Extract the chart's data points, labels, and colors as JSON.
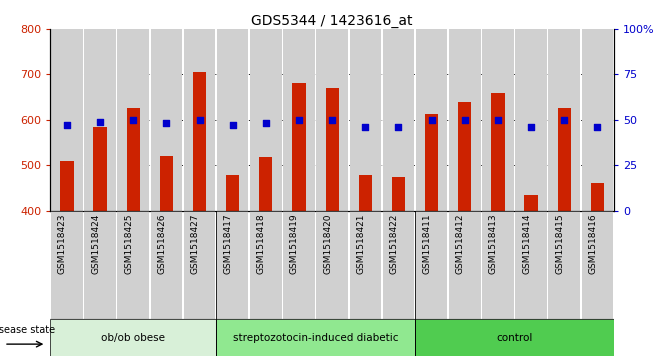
{
  "title": "GDS5344 / 1423616_at",
  "samples": [
    "GSM1518423",
    "GSM1518424",
    "GSM1518425",
    "GSM1518426",
    "GSM1518427",
    "GSM1518417",
    "GSM1518418",
    "GSM1518419",
    "GSM1518420",
    "GSM1518421",
    "GSM1518422",
    "GSM1518411",
    "GSM1518412",
    "GSM1518413",
    "GSM1518414",
    "GSM1518415",
    "GSM1518416"
  ],
  "counts": [
    510,
    585,
    625,
    520,
    706,
    478,
    517,
    680,
    670,
    478,
    473,
    612,
    640,
    658,
    435,
    625,
    461
  ],
  "percentiles": [
    47,
    49,
    50,
    48,
    50,
    47,
    48,
    50,
    50,
    46,
    46,
    50,
    50,
    50,
    46,
    50,
    46
  ],
  "groups": [
    {
      "label": "ob/ob obese",
      "start": 0,
      "end": 5,
      "color": "#d8f0d8"
    },
    {
      "label": "streptozotocin-induced diabetic",
      "start": 5,
      "end": 11,
      "color": "#90e890"
    },
    {
      "label": "control",
      "start": 11,
      "end": 17,
      "color": "#50cc50"
    }
  ],
  "ylim_left": [
    400,
    800
  ],
  "ylim_right": [
    0,
    100
  ],
  "yticks_left": [
    400,
    500,
    600,
    700,
    800
  ],
  "yticks_right": [
    0,
    25,
    50,
    75,
    100
  ],
  "bar_color": "#cc2200",
  "dot_color": "#0000cc",
  "cell_bg_color": "#d0d0d0",
  "plot_bg": "#ffffff"
}
